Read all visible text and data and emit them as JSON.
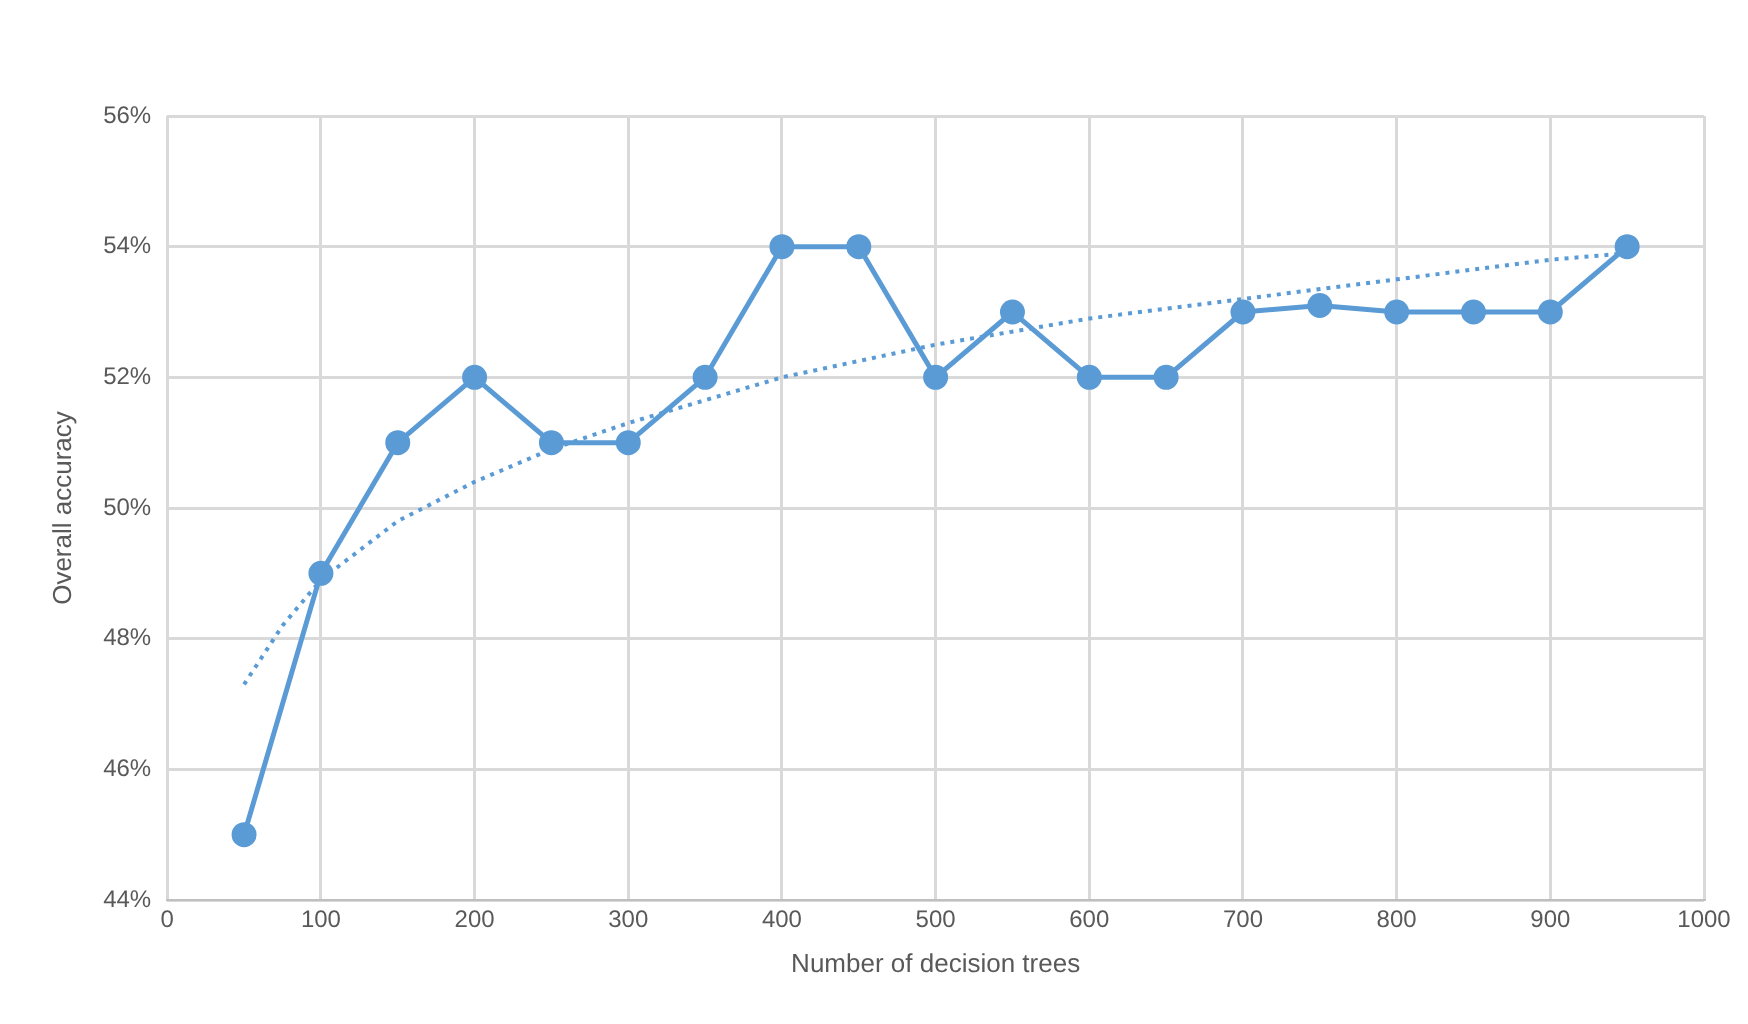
{
  "chart_data": {
    "type": "line",
    "xlabel": "Number of decision trees",
    "ylabel": "Overall accuracy",
    "xlim": [
      0,
      1000
    ],
    "xticks": [
      0,
      100,
      200,
      300,
      400,
      500,
      600,
      700,
      800,
      900,
      1000
    ],
    "ylim": [
      44,
      56
    ],
    "yticks": [
      {
        "value": 44,
        "label": "44%"
      },
      {
        "value": 46,
        "label": "46%"
      },
      {
        "value": 48,
        "label": "48%"
      },
      {
        "value": 50,
        "label": "50%"
      },
      {
        "value": 52,
        "label": "52%"
      },
      {
        "value": 54,
        "label": "54%"
      },
      {
        "value": 56,
        "label": "56%"
      }
    ],
    "grid": true,
    "legend": false,
    "series": [
      {
        "color": "#5b9bd5",
        "marker": "circle",
        "line_style": "solid",
        "x": [
          50,
          100,
          150,
          200,
          250,
          300,
          350,
          400,
          450,
          500,
          550,
          600,
          650,
          700,
          750,
          800,
          850,
          900,
          950
        ],
        "values": [
          45,
          49,
          51,
          52,
          51,
          51,
          52,
          54,
          54,
          52,
          53,
          52,
          52,
          53,
          53.1,
          53,
          53,
          53,
          54
        ]
      },
      {
        "color": "#5b9bd5",
        "marker": "none",
        "line_style": "dotted",
        "x": [
          50,
          75,
          100,
          150,
          200,
          250,
          300,
          400,
          500,
          600,
          700,
          800,
          900,
          950
        ],
        "values": [
          47.3,
          48.2,
          48.9,
          49.8,
          50.4,
          50.9,
          51.3,
          52.0,
          52.5,
          52.9,
          53.2,
          53.5,
          53.8,
          53.9
        ]
      }
    ]
  }
}
